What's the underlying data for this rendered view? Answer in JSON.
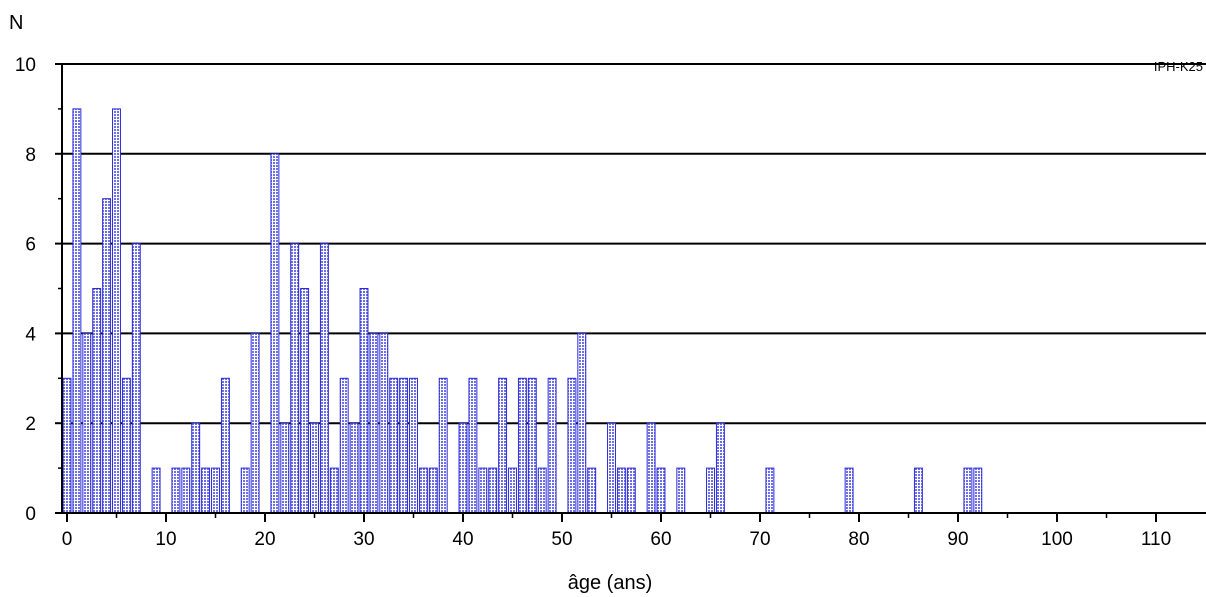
{
  "chart_data": {
    "type": "bar",
    "title": "",
    "xlabel": "âge (ans)",
    "ylabel": "N",
    "annotation": "IPH-K25",
    "xlim": [
      -0.5,
      115
    ],
    "ylim": [
      0,
      10
    ],
    "xticks": [
      0,
      10,
      20,
      30,
      40,
      50,
      60,
      70,
      80,
      90,
      100,
      110
    ],
    "yticks": [
      0,
      2,
      4,
      6,
      8,
      10
    ],
    "grid": "horizontal",
    "bar_fill": "#c4c6f0",
    "bar_edge": "#2a2ad8",
    "grid_color": "#000000",
    "x": [
      0,
      1,
      2,
      3,
      4,
      5,
      6,
      7,
      9,
      11,
      12,
      13,
      14,
      15,
      16,
      18,
      19,
      21,
      22,
      23,
      24,
      25,
      26,
      27,
      28,
      29,
      30,
      31,
      32,
      33,
      34,
      35,
      36,
      37,
      38,
      40,
      41,
      42,
      43,
      44,
      45,
      46,
      47,
      48,
      49,
      51,
      52,
      53,
      55,
      56,
      57,
      59,
      60,
      62,
      65,
      66,
      71,
      79,
      86,
      91,
      92
    ],
    "values": [
      3,
      9,
      4,
      5,
      7,
      9,
      3,
      6,
      1,
      1,
      1,
      2,
      1,
      1,
      3,
      1,
      4,
      8,
      2,
      6,
      5,
      2,
      6,
      1,
      3,
      2,
      5,
      4,
      4,
      3,
      3,
      3,
      1,
      1,
      3,
      2,
      3,
      1,
      1,
      3,
      1,
      3,
      3,
      1,
      3,
      3,
      4,
      1,
      2,
      1,
      1,
      2,
      1,
      1,
      1,
      2,
      1,
      1,
      1,
      1,
      1
    ]
  }
}
